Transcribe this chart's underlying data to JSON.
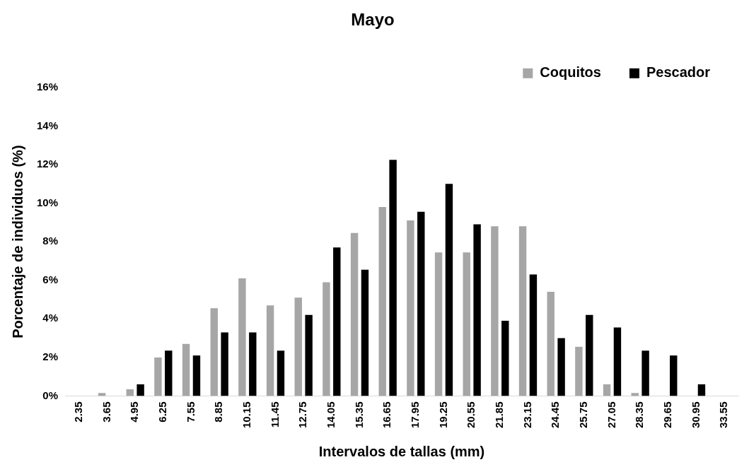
{
  "chart_data": {
    "type": "bar",
    "title": "Mayo",
    "xlabel": "Intervalos de tallas (mm)",
    "ylabel": "Porcentaje de individuos (%)",
    "categories": [
      "2.35",
      "3.65",
      "4.95",
      "6.25",
      "7.55",
      "8.85",
      "10.15",
      "11.45",
      "12.75",
      "14.05",
      "15.35",
      "16.65",
      "17.95",
      "19.25",
      "20.55",
      "21.85",
      "23.15",
      "24.45",
      "25.75",
      "27.05",
      "28.35",
      "29.65",
      "30.95",
      "33.55"
    ],
    "series": [
      {
        "name": "Coquitos",
        "color": "#a6a6a6",
        "values": [
          0,
          0.15,
          0.35,
          2.0,
          2.7,
          4.55,
          6.1,
          4.7,
          5.1,
          5.9,
          8.45,
          9.8,
          9.1,
          7.45,
          7.45,
          8.8,
          8.8,
          5.4,
          2.55,
          0.6,
          0.15,
          0,
          0,
          0
        ]
      },
      {
        "name": "Pescador",
        "color": "#000000",
        "values": [
          0,
          0,
          0.6,
          2.35,
          2.1,
          3.3,
          3.3,
          2.35,
          4.2,
          7.7,
          6.55,
          12.25,
          9.55,
          11.0,
          8.9,
          3.9,
          6.3,
          3.0,
          4.2,
          3.55,
          2.35,
          2.1,
          0.6,
          0
        ]
      }
    ],
    "ylim": [
      0,
      16
    ],
    "yticks": [
      {
        "value": 0,
        "label": "0%"
      },
      {
        "value": 2,
        "label": "2%"
      },
      {
        "value": 4,
        "label": "4%"
      },
      {
        "value": 6,
        "label": "6%"
      },
      {
        "value": 8,
        "label": "8%"
      },
      {
        "value": 10,
        "label": "10%"
      },
      {
        "value": 12,
        "label": "12%"
      },
      {
        "value": 14,
        "label": "14%"
      },
      {
        "value": 16,
        "label": "16%"
      }
    ],
    "grid": false,
    "legend": "top right"
  }
}
